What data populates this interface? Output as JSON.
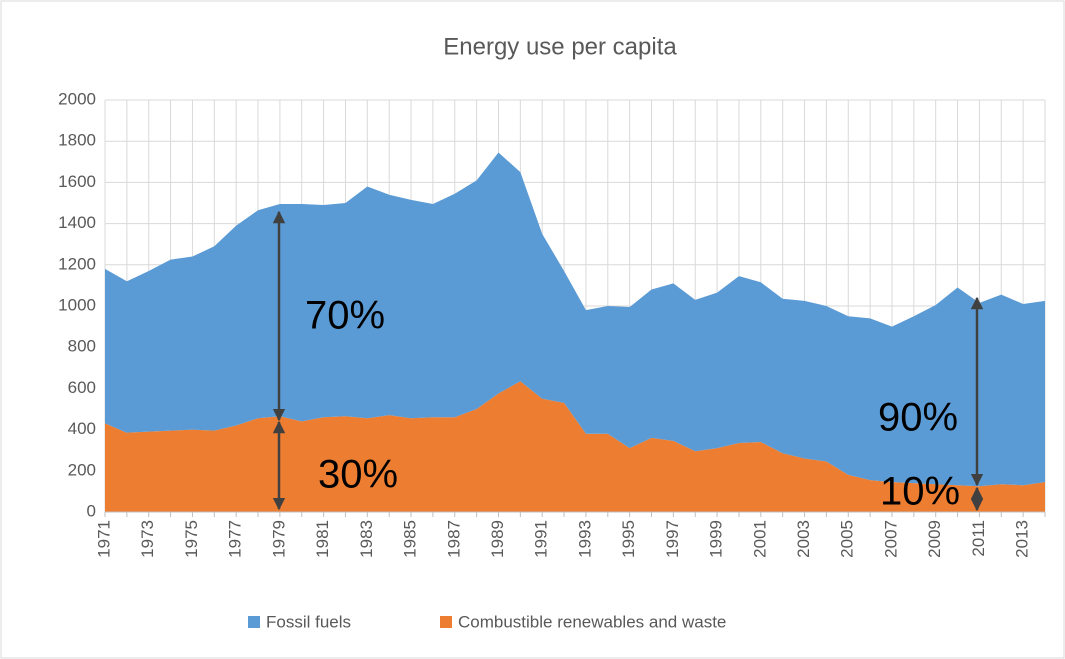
{
  "chart_data": {
    "type": "stacked_area",
    "title": "Energy use per capita",
    "categories": [
      "1971",
      null,
      "1973",
      null,
      "1975",
      null,
      "1977",
      null,
      "1979",
      null,
      "1981",
      null,
      "1983",
      null,
      "1985",
      null,
      "1987",
      null,
      "1989",
      null,
      "1991",
      null,
      "1993",
      null,
      "1995",
      null,
      "1997",
      null,
      "1999",
      null,
      "2001",
      null,
      "2003",
      null,
      "2005",
      null,
      "2007",
      null,
      "2009",
      null,
      "2011",
      null,
      "2013",
      null
    ],
    "series": [
      {
        "name": "Combustible renewables and waste",
        "color": "#ed7d31",
        "values": [
          430,
          385,
          390,
          395,
          400,
          395,
          420,
          455,
          465,
          440,
          460,
          465,
          455,
          470,
          455,
          460,
          460,
          500,
          575,
          635,
          550,
          530,
          380,
          380,
          310,
          360,
          345,
          295,
          310,
          335,
          340,
          285,
          260,
          245,
          180,
          155,
          145,
          140,
          135,
          130,
          125,
          135,
          130,
          145
        ]
      },
      {
        "name": "Fossil fuels",
        "color": "#5b9bd5",
        "values": [
          750,
          735,
          780,
          830,
          840,
          895,
          970,
          1010,
          1030,
          1055,
          1030,
          1035,
          1125,
          1070,
          1060,
          1035,
          1085,
          1110,
          1170,
          1015,
          800,
          640,
          600,
          620,
          685,
          720,
          765,
          735,
          755,
          810,
          775,
          750,
          765,
          755,
          770,
          785,
          755,
          810,
          870,
          960,
          890,
          920,
          880,
          880
        ]
      }
    ],
    "legend_order": [
      1,
      0
    ],
    "ylim": [
      0,
      2000
    ],
    "yticks": [
      0,
      200,
      400,
      600,
      800,
      1000,
      1200,
      1400,
      1600,
      1800,
      2000
    ],
    "grid": true,
    "annotations": [
      "70%",
      "30%",
      "90%",
      "10%"
    ]
  }
}
